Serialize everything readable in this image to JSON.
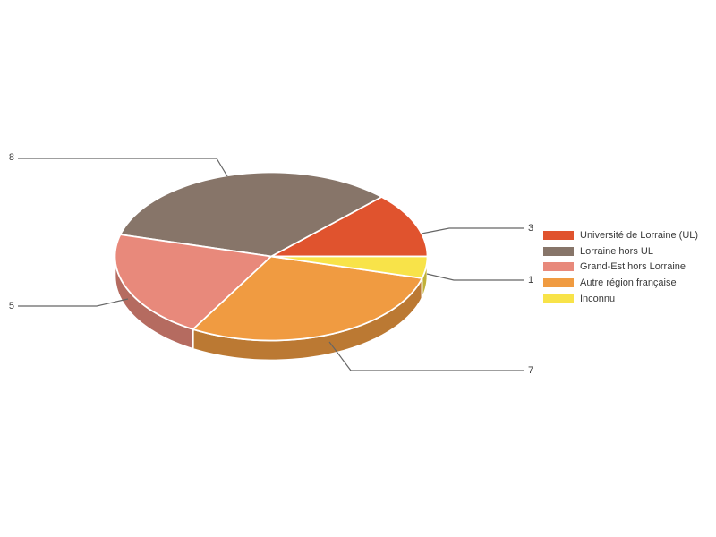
{
  "page": {
    "background_color": "#ffffff"
  },
  "chart_data": {
    "type": "pie",
    "is3D": true,
    "legend_position": "right",
    "slices": [
      {
        "label": "Université de Lorraine (UL)",
        "value": 3,
        "color": "#E0532E"
      },
      {
        "label": "Lorraine hors UL",
        "value": 8,
        "color": "#877569"
      },
      {
        "label": "Grand-Est hors Lorraine",
        "value": 5,
        "color": "#E8897B"
      },
      {
        "label": "Autre région française",
        "value": 7,
        "color": "#F09B41"
      },
      {
        "label": "Inconnu",
        "value": 1,
        "color": "#F8E349"
      }
    ]
  }
}
